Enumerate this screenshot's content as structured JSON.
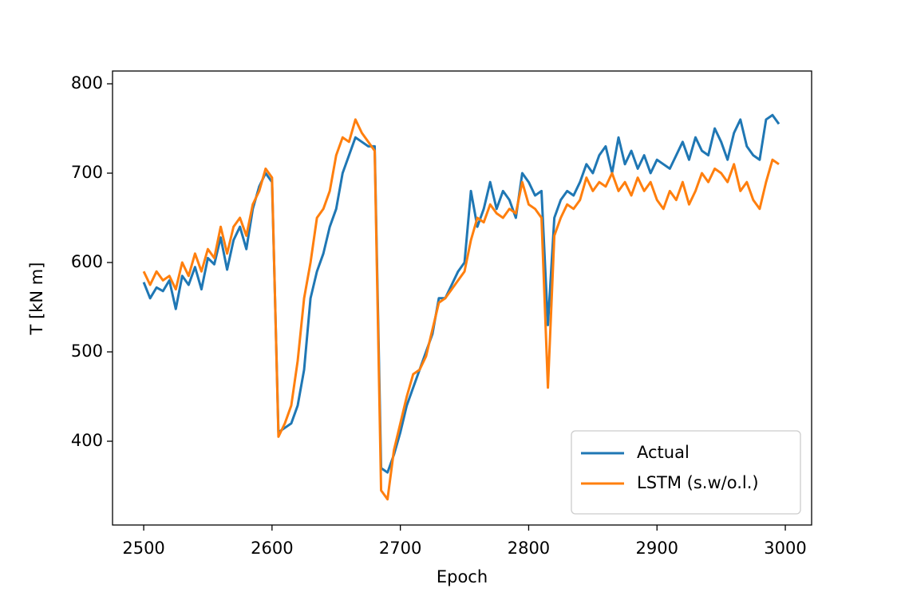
{
  "chart_data": {
    "type": "line",
    "x_label": "Epoch",
    "y_label": "T [kN m]",
    "x": [
      2500,
      2505,
      2510,
      2515,
      2520,
      2525,
      2530,
      2535,
      2540,
      2545,
      2550,
      2555,
      2560,
      2565,
      2570,
      2575,
      2580,
      2585,
      2590,
      2595,
      2600,
      2605,
      2610,
      2615,
      2620,
      2625,
      2630,
      2635,
      2640,
      2645,
      2650,
      2655,
      2660,
      2665,
      2670,
      2675,
      2680,
      2685,
      2690,
      2695,
      2700,
      2705,
      2710,
      2715,
      2720,
      2725,
      2730,
      2735,
      2740,
      2745,
      2750,
      2755,
      2760,
      2765,
      2770,
      2775,
      2780,
      2785,
      2790,
      2795,
      2800,
      2805,
      2810,
      2815,
      2820,
      2825,
      2830,
      2835,
      2840,
      2845,
      2850,
      2855,
      2860,
      2865,
      2870,
      2875,
      2880,
      2885,
      2890,
      2895,
      2900,
      2905,
      2910,
      2915,
      2920,
      2925,
      2930,
      2935,
      2940,
      2945,
      2950,
      2955,
      2960,
      2965,
      2970,
      2975,
      2980,
      2985,
      2990,
      2995
    ],
    "series": [
      {
        "name": "Actual",
        "color": "#1f77b4",
        "values": [
          578,
          560,
          572,
          568,
          580,
          548,
          585,
          575,
          595,
          570,
          605,
          598,
          628,
          592,
          625,
          640,
          615,
          660,
          685,
          700,
          690,
          410,
          415,
          420,
          440,
          480,
          560,
          590,
          610,
          640,
          660,
          700,
          720,
          740,
          735,
          730,
          730,
          370,
          365,
          385,
          410,
          440,
          460,
          480,
          500,
          520,
          560,
          560,
          575,
          590,
          600,
          680,
          640,
          660,
          690,
          660,
          680,
          670,
          650,
          700,
          690,
          675,
          680,
          530,
          650,
          670,
          680,
          675,
          690,
          710,
          700,
          720,
          730,
          700,
          740,
          710,
          725,
          705,
          720,
          700,
          715,
          710,
          705,
          720,
          735,
          715,
          740,
          725,
          720,
          750,
          735,
          715,
          745,
          760,
          730,
          720,
          715,
          760,
          765,
          755
        ]
      },
      {
        "name": "LSTM (s.w/o.l.)",
        "color": "#ff7f0e",
        "values": [
          590,
          575,
          590,
          580,
          585,
          570,
          600,
          585,
          610,
          590,
          615,
          605,
          640,
          610,
          640,
          650,
          630,
          665,
          680,
          705,
          695,
          405,
          420,
          440,
          490,
          560,
          600,
          650,
          660,
          680,
          720,
          740,
          735,
          760,
          745,
          735,
          725,
          345,
          335,
          390,
          420,
          450,
          475,
          480,
          495,
          525,
          555,
          560,
          570,
          580,
          590,
          625,
          650,
          645,
          665,
          655,
          650,
          660,
          655,
          690,
          665,
          660,
          650,
          460,
          630,
          650,
          665,
          660,
          670,
          695,
          680,
          690,
          685,
          700,
          680,
          690,
          675,
          695,
          680,
          690,
          670,
          660,
          680,
          670,
          690,
          665,
          680,
          700,
          690,
          705,
          700,
          690,
          710,
          680,
          690,
          670,
          660,
          690,
          715,
          710
        ]
      }
    ],
    "xlim": [
      2475.7,
      3020.5
    ],
    "ylim": [
      306.25,
      814.3
    ],
    "xticks": [
      2500,
      2600,
      2700,
      2800,
      2900,
      3000
    ],
    "yticks": [
      400,
      500,
      600,
      700,
      800
    ],
    "legend": "lower right",
    "grid": false
  }
}
